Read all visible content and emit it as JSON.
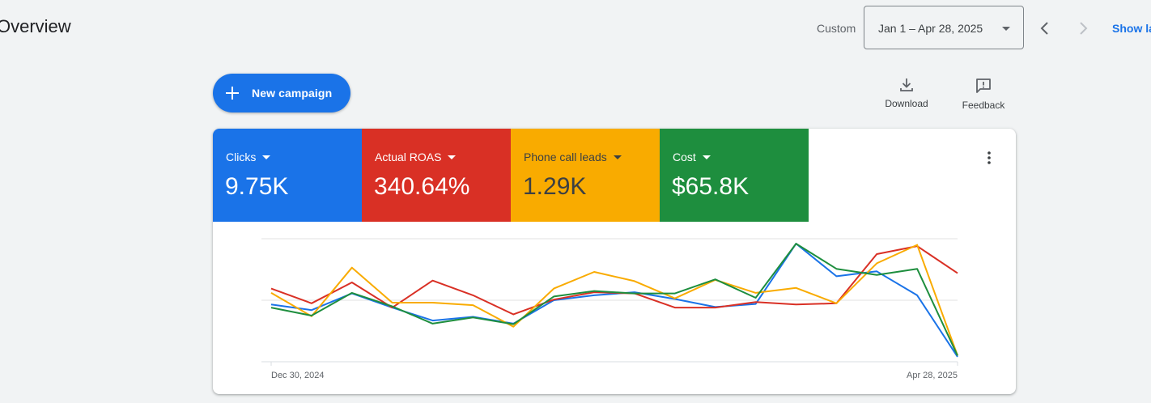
{
  "header": {
    "page_title": "Overview",
    "range_label": "Custom",
    "date_range": "Jan 1 – Apr 28, 2025",
    "show_link": "Show la"
  },
  "toolbar": {
    "new_campaign": "New campaign",
    "download": "Download",
    "feedback": "Feedback"
  },
  "metrics": [
    {
      "name": "Clicks",
      "value": "9.75K",
      "color": "#1a73e8"
    },
    {
      "name": "Actual ROAS",
      "value": "340.64%",
      "color": "#d93025"
    },
    {
      "name": "Phone call leads",
      "value": "1.29K",
      "color": "#f9ab00"
    },
    {
      "name": "Cost",
      "value": "$65.8K",
      "color": "#1e8e3e"
    }
  ],
  "icons": [
    "plus-icon",
    "download-icon",
    "feedback-icon",
    "chevron-left-icon",
    "chevron-right-icon",
    "more-vert-icon",
    "dropdown-caret-icon"
  ],
  "chart_data": {
    "type": "line",
    "x_start_label": "Dec 30, 2024",
    "x_end_label": "Apr 28, 2025",
    "grid": true,
    "series": [
      {
        "name": "Clicks",
        "color": "#1a73e8",
        "values": [
          0.465,
          0.42,
          0.555,
          0.44,
          0.335,
          0.365,
          0.31,
          0.5,
          0.54,
          0.565,
          0.51,
          0.445,
          0.47,
          0.96,
          0.695,
          0.735,
          0.54,
          0.04
        ]
      },
      {
        "name": "Actual ROAS",
        "color": "#d93025",
        "values": [
          0.595,
          0.475,
          0.645,
          0.44,
          0.66,
          0.54,
          0.385,
          0.505,
          0.565,
          0.555,
          0.44,
          0.44,
          0.485,
          0.465,
          0.475,
          0.875,
          0.94,
          0.72
        ]
      },
      {
        "name": "Phone call leads",
        "color": "#f9ab00",
        "values": [
          0.56,
          0.37,
          0.765,
          0.48,
          0.48,
          0.46,
          0.285,
          0.595,
          0.73,
          0.655,
          0.515,
          0.665,
          0.56,
          0.6,
          0.475,
          0.8,
          0.95,
          0.05
        ]
      },
      {
        "name": "Cost",
        "color": "#1e8e3e",
        "values": [
          0.44,
          0.375,
          0.56,
          0.45,
          0.31,
          0.36,
          0.305,
          0.53,
          0.575,
          0.555,
          0.555,
          0.67,
          0.52,
          0.96,
          0.755,
          0.705,
          0.755,
          0.05
        ]
      }
    ]
  }
}
